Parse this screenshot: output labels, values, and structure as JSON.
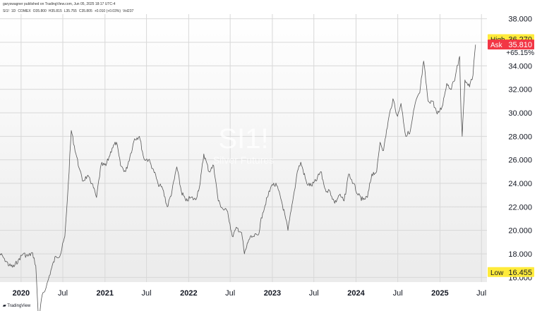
{
  "header": {
    "publisher": "garyswagner published on TradingView.com, Jun 05, 2025 18:17 UTC-4"
  },
  "symbol_line": {
    "symbol": "SI1!",
    "interval": "1D",
    "exchange": "COMEX",
    "open": "O35.800",
    "high": "H35.815",
    "low": "L35.755",
    "close": "C35.805",
    "change": "+0.010 (+0.03%)",
    "volume": "Vol237"
  },
  "watermark": {
    "symbol": "SI1!",
    "name": "Silver Futures"
  },
  "footer": {
    "brand": "TradingView"
  },
  "colors": {
    "line": "#555555",
    "grid": "#d8d8d8",
    "bg_top": "#ffffff",
    "bg_bottom": "#ebebeb",
    "highlight": "#ffeb3b",
    "ask": "#f23645"
  },
  "chart_data": {
    "type": "line",
    "title": "",
    "xlabel": "",
    "ylabel": "",
    "ylim": [
      15.6,
      38.4
    ],
    "xlim": [
      "2019-10-01",
      "2025-07-25"
    ],
    "y_ticks": [
      "38.000",
      "36.000",
      "34.000",
      "32.000",
      "30.000",
      "28.000",
      "26.000",
      "24.000",
      "22.000",
      "20.000",
      "18.000",
      "16.000"
    ],
    "x_ticks": [
      {
        "label": "2020",
        "date": "2020-01-01",
        "bold": true
      },
      {
        "label": "Jul",
        "date": "2020-07-01",
        "bold": false
      },
      {
        "label": "2021",
        "date": "2021-01-01",
        "bold": true
      },
      {
        "label": "Jul",
        "date": "2021-07-01",
        "bold": false
      },
      {
        "label": "2022",
        "date": "2022-01-01",
        "bold": true
      },
      {
        "label": "Jul",
        "date": "2022-07-01",
        "bold": false
      },
      {
        "label": "2023",
        "date": "2023-01-01",
        "bold": true
      },
      {
        "label": "Jul",
        "date": "2023-07-01",
        "bold": false
      },
      {
        "label": "2024",
        "date": "2024-01-01",
        "bold": true
      },
      {
        "label": "Jul",
        "date": "2024-07-01",
        "bold": false
      },
      {
        "label": "2025",
        "date": "2025-01-01",
        "bold": true
      },
      {
        "label": "Jul",
        "date": "2025-07-01",
        "bold": false
      }
    ],
    "series": [
      {
        "x": [
          "2019-10-01",
          "2019-10-20",
          "2019-11-10",
          "2019-12-01",
          "2019-12-20",
          "2020-01-10",
          "2020-01-31",
          "2020-02-20",
          "2020-03-05",
          "2020-03-18",
          "2020-03-30",
          "2020-04-20",
          "2020-05-10",
          "2020-05-31",
          "2020-06-20",
          "2020-07-10",
          "2020-07-25",
          "2020-08-07",
          "2020-08-20",
          "2020-09-10",
          "2020-09-25",
          "2020-10-15",
          "2020-11-05",
          "2020-11-25",
          "2020-12-15",
          "2021-01-05",
          "2021-02-01",
          "2021-02-20",
          "2021-03-10",
          "2021-04-01",
          "2021-04-20",
          "2021-05-10",
          "2021-05-31",
          "2021-06-20",
          "2021-07-10",
          "2021-07-31",
          "2021-08-20",
          "2021-09-10",
          "2021-09-30",
          "2021-10-20",
          "2021-11-10",
          "2021-11-30",
          "2021-12-20",
          "2022-01-10",
          "2022-01-31",
          "2022-02-20",
          "2022-03-08",
          "2022-03-31",
          "2022-04-20",
          "2022-05-10",
          "2022-05-31",
          "2022-06-20",
          "2022-07-10",
          "2022-07-31",
          "2022-08-20",
          "2022-09-01",
          "2022-09-20",
          "2022-10-10",
          "2022-10-31",
          "2022-11-20",
          "2022-12-10",
          "2022-12-31",
          "2023-01-20",
          "2023-02-10",
          "2023-02-28",
          "2023-03-10",
          "2023-03-31",
          "2023-04-20",
          "2023-05-05",
          "2023-05-31",
          "2023-06-20",
          "2023-07-10",
          "2023-07-31",
          "2023-08-20",
          "2023-09-10",
          "2023-09-30",
          "2023-10-20",
          "2023-11-10",
          "2023-11-30",
          "2023-12-20",
          "2024-01-10",
          "2024-01-31",
          "2024-02-20",
          "2024-03-10",
          "2024-03-31",
          "2024-04-15",
          "2024-04-30",
          "2024-05-20",
          "2024-06-10",
          "2024-06-30",
          "2024-07-15",
          "2024-08-05",
          "2024-08-25",
          "2024-09-15",
          "2024-10-05",
          "2024-10-22",
          "2024-11-10",
          "2024-11-30",
          "2024-12-20",
          "2025-01-10",
          "2025-01-31",
          "2025-02-20",
          "2025-03-10",
          "2025-03-28",
          "2025-04-03",
          "2025-04-08",
          "2025-04-20",
          "2025-05-10",
          "2025-05-25",
          "2025-06-05"
        ],
        "values": [
          18.0,
          17.6,
          17.0,
          16.9,
          17.5,
          18.0,
          17.8,
          18.1,
          17.0,
          12.0,
          14.2,
          15.2,
          16.6,
          17.8,
          17.9,
          19.5,
          24.0,
          28.5,
          27.2,
          25.3,
          24.2,
          24.6,
          24.0,
          22.8,
          25.6,
          25.5,
          27.0,
          27.5,
          25.5,
          25.0,
          26.3,
          27.8,
          28.0,
          26.1,
          26.0,
          25.2,
          24.0,
          23.5,
          22.0,
          23.3,
          25.4,
          23.3,
          22.5,
          22.8,
          22.6,
          24.0,
          26.5,
          25.0,
          25.5,
          22.5,
          21.8,
          21.6,
          19.5,
          20.2,
          19.8,
          18.0,
          19.2,
          19.5,
          19.6,
          21.5,
          22.8,
          23.9,
          23.8,
          22.5,
          21.0,
          20.0,
          22.5,
          25.0,
          25.8,
          24.0,
          23.8,
          24.2,
          25.0,
          23.5,
          23.3,
          22.3,
          23.0,
          22.5,
          24.8,
          24.0,
          23.0,
          22.6,
          22.8,
          24.8,
          25.0,
          27.5,
          26.8,
          29.3,
          31.2,
          29.7,
          30.8,
          28.0,
          28.5,
          30.8,
          31.7,
          34.4,
          31.0,
          31.0,
          29.9,
          30.5,
          32.5,
          32.0,
          33.2,
          34.8,
          30.0,
          28.0,
          32.8,
          32.2,
          33.2,
          35.8
        ]
      }
    ],
    "annotations": {
      "high": {
        "label": "High",
        "value": "36.270"
      },
      "ask": {
        "label": "Ask",
        "value": "35.810"
      },
      "change": "+65.15%",
      "low": {
        "label": "Low",
        "value": "16.455"
      }
    }
  }
}
